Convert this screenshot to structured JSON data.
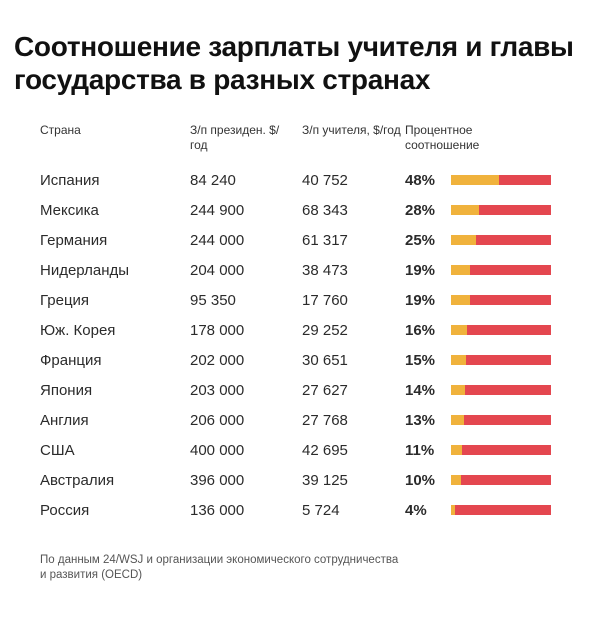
{
  "title": "Соотношение зарплаты учителя и главы государства в разных странах",
  "headers": {
    "country": "Страна",
    "president": "З/п президен. $/год",
    "teacher": "З/п учителя, $/год",
    "percent": "Процентное соотношение"
  },
  "colors": {
    "bar_fill": "#f0b23c",
    "bar_rest": "#e4474f"
  },
  "chart_data": {
    "type": "table",
    "columns": [
      "Страна",
      "З/п президен. $/год",
      "З/п учителя, $/год",
      "Процентное соотношение"
    ],
    "rows": [
      {
        "country": "Испания",
        "president": "84 240",
        "teacher": "40 752",
        "percent": "48%",
        "ratio": 48
      },
      {
        "country": "Мексика",
        "president": "244 900",
        "teacher": "68 343",
        "percent": "28%",
        "ratio": 28
      },
      {
        "country": "Германия",
        "president": "244 000",
        "teacher": "61 317",
        "percent": "25%",
        "ratio": 25
      },
      {
        "country": "Нидерланды",
        "president": "204 000",
        "teacher": "38 473",
        "percent": "19%",
        "ratio": 19
      },
      {
        "country": "Греция",
        "president": "95 350",
        "teacher": "17 760",
        "percent": "19%",
        "ratio": 19
      },
      {
        "country": "Юж. Корея",
        "president": "178 000",
        "teacher": "29 252",
        "percent": "16%",
        "ratio": 16
      },
      {
        "country": "Франция",
        "president": "202 000",
        "teacher": "30 651",
        "percent": "15%",
        "ratio": 15
      },
      {
        "country": "Япония",
        "president": "203 000",
        "teacher": "27 627",
        "percent": "14%",
        "ratio": 14
      },
      {
        "country": "Англия",
        "president": "206 000",
        "teacher": "27 768",
        "percent": "13%",
        "ratio": 13
      },
      {
        "country": "США",
        "president": "400 000",
        "teacher": "42 695",
        "percent": "11%",
        "ratio": 11
      },
      {
        "country": "Австралия",
        "president": "396 000",
        "teacher": "39 125",
        "percent": "10%",
        "ratio": 10
      },
      {
        "country": "Россия",
        "president": "136 000",
        "teacher": "5 724",
        "percent": "4%",
        "ratio": 4
      }
    ]
  },
  "source": "По данным 24/WSJ и организации экономического сотрудничества и развития (OECD)"
}
